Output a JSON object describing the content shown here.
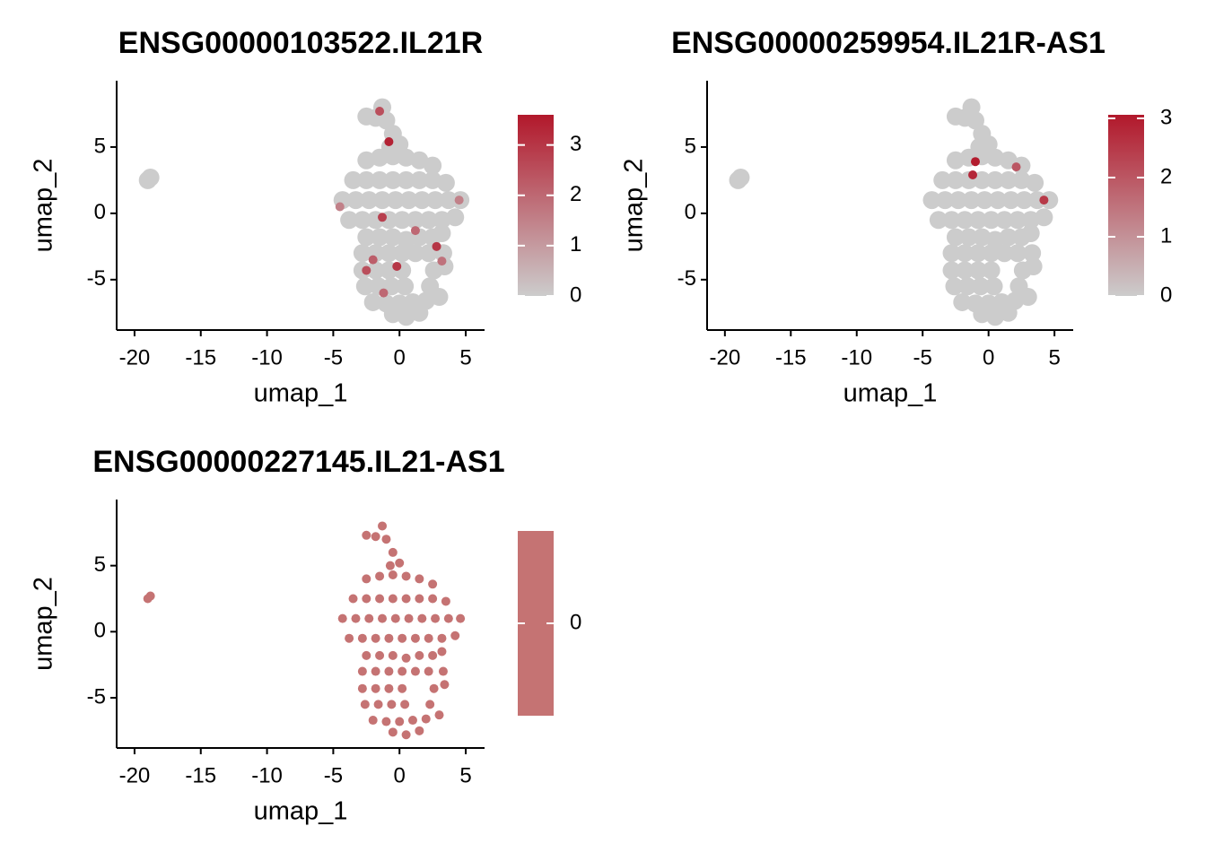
{
  "chart_data": [
    {
      "type": "scatter",
      "title": "ENSG00000103522.IL21R",
      "x_label": "umap_1",
      "y_label": "umap_2",
      "xlim": [
        -21.35,
        6.42
      ],
      "ylim": [
        -8.8,
        10
      ],
      "xticks": [
        -20,
        -15,
        -10,
        -5,
        0,
        5
      ],
      "yticks": [
        -5,
        0,
        5
      ],
      "color_low": "#cccccc",
      "color_high": "#b2182b",
      "clim": [
        0,
        3.6
      ],
      "cticks": [
        0,
        1,
        2,
        3
      ],
      "x": [
        -18.8,
        -19,
        -2.5,
        -1.8,
        -1.3,
        -1,
        -0.5,
        0,
        -0.7,
        -2.5,
        -1.5,
        -0.5,
        0.5,
        1.5,
        2.5,
        -3.5,
        -2.5,
        -1.5,
        -0.5,
        0.5,
        1.5,
        2.5,
        3.5,
        -4.3,
        -3.3,
        -2.3,
        -1.3,
        -0.3,
        0.7,
        1.7,
        2.7,
        3.7,
        4.6,
        -3.8,
        -2.8,
        -1.8,
        -0.8,
        0.2,
        1.2,
        2.2,
        3.2,
        4.2,
        -2.5,
        -1.5,
        -0.5,
        0.5,
        1.5,
        2.5,
        3.2,
        -2.8,
        -1.8,
        -0.8,
        0.2,
        1.2,
        2.2,
        3.3,
        -2.8,
        -1.8,
        -0.8,
        0.2,
        2.6,
        3.4,
        -2.6,
        -1.6,
        -0.6,
        0.4,
        2.3,
        -2,
        -1,
        0,
        1,
        2,
        3,
        -0.5,
        0.5,
        1.5,
        -1.5,
        -0.8,
        -4.5,
        -1.3,
        1.2,
        -2,
        -0.2,
        3.2,
        -2.5,
        2.8,
        -1.2,
        4.5
      ],
      "y": [
        2.7,
        2.5,
        7.3,
        7.2,
        8,
        7,
        6,
        5.2,
        5,
        4,
        4.2,
        4.3,
        4.2,
        4,
        3.6,
        2.5,
        2.5,
        2.5,
        2.5,
        2.5,
        2.5,
        2.5,
        2.3,
        1,
        1,
        1,
        1,
        1,
        1,
        1,
        1,
        1,
        1,
        -0.5,
        -0.5,
        -0.5,
        -0.5,
        -0.5,
        -0.5,
        -0.5,
        -0.5,
        -0.3,
        -1.8,
        -1.8,
        -1.8,
        -2,
        -1.8,
        -1.8,
        -1.5,
        -3,
        -3,
        -3,
        -3,
        -3,
        -3,
        -3,
        -4.3,
        -4.3,
        -4.3,
        -4.3,
        -4.3,
        -4,
        -5.5,
        -5.5,
        -5.5,
        -5.5,
        -5.5,
        -6.7,
        -6.8,
        -6.8,
        -6.7,
        -6.6,
        -6.3,
        -7.6,
        -7.8,
        -7.5,
        7.7,
        5.4,
        0.5,
        -0.3,
        -1.3,
        -3.5,
        -4,
        -3.6,
        -4.3,
        -2.5,
        -6,
        1
      ],
      "values": [
        0,
        0,
        0,
        0,
        0,
        0,
        0,
        0,
        0,
        0,
        0,
        0,
        0,
        0,
        0,
        0,
        0,
        0,
        0,
        0,
        0,
        0,
        0,
        0,
        0,
        0,
        0,
        0,
        0,
        0,
        0,
        0,
        0,
        0,
        0,
        0,
        0,
        0,
        0,
        0,
        0,
        0,
        0,
        0,
        0,
        0,
        0,
        0,
        0,
        0,
        0,
        0,
        0,
        0,
        0,
        0,
        0,
        0,
        0,
        0,
        0,
        0,
        0,
        0,
        0,
        0,
        0,
        0,
        0,
        0,
        0,
        0,
        0,
        0,
        0,
        0,
        2.5,
        3.4,
        1.5,
        2.8,
        2,
        2.2,
        3,
        1.8,
        2.5,
        3,
        2,
        1.5
      ]
    },
    {
      "type": "scatter",
      "title": "ENSG00000259954.IL21R-AS1",
      "x_label": "umap_1",
      "y_label": "umap_2",
      "xlim": [
        -21.35,
        6.42
      ],
      "ylim": [
        -8.8,
        10
      ],
      "xticks": [
        -20,
        -15,
        -10,
        -5,
        0,
        5
      ],
      "yticks": [
        -5,
        0,
        5
      ],
      "color_low": "#cccccc",
      "color_high": "#b2182b",
      "clim": [
        0,
        3.06
      ],
      "cticks": [
        0,
        1,
        2,
        3
      ],
      "x": [
        -18.8,
        -19,
        -2.5,
        -1.8,
        -1.3,
        -1,
        -0.5,
        0,
        -0.7,
        -2.5,
        -1.5,
        -0.5,
        0.5,
        1.5,
        2.5,
        -3.5,
        -2.5,
        -1.5,
        -0.5,
        0.5,
        1.5,
        2.5,
        3.5,
        -4.3,
        -3.3,
        -2.3,
        -1.3,
        -0.3,
        0.7,
        1.7,
        2.7,
        3.7,
        4.6,
        -3.8,
        -2.8,
        -1.8,
        -0.8,
        0.2,
        1.2,
        2.2,
        3.2,
        4.2,
        -2.5,
        -1.5,
        -0.5,
        0.5,
        1.5,
        2.5,
        3.2,
        -2.8,
        -1.8,
        -0.8,
        0.2,
        1.2,
        2.2,
        3.3,
        -2.8,
        -1.8,
        -0.8,
        0.2,
        2.6,
        3.4,
        -2.6,
        -1.6,
        -0.6,
        0.4,
        2.3,
        -2,
        -1,
        0,
        1,
        2,
        3,
        -0.5,
        0.5,
        1.5,
        -1,
        -1.2,
        2.1,
        4.2
      ],
      "y": [
        2.7,
        2.5,
        7.3,
        7.2,
        8,
        7,
        6,
        5.2,
        5,
        4,
        4.2,
        4.3,
        4.2,
        4,
        3.6,
        2.5,
        2.5,
        2.5,
        2.5,
        2.5,
        2.5,
        2.5,
        2.3,
        1,
        1,
        1,
        1,
        1,
        1,
        1,
        1,
        1,
        1,
        -0.5,
        -0.5,
        -0.5,
        -0.5,
        -0.5,
        -0.5,
        -0.5,
        -0.5,
        -0.3,
        -1.8,
        -1.8,
        -1.8,
        -2,
        -1.8,
        -1.8,
        -1.5,
        -3,
        -3,
        -3,
        -3,
        -3,
        -3,
        -3,
        -4.3,
        -4.3,
        -4.3,
        -4.3,
        -4.3,
        -4,
        -5.5,
        -5.5,
        -5.5,
        -5.5,
        -5.5,
        -6.7,
        -6.8,
        -6.8,
        -6.7,
        -6.6,
        -6.3,
        -7.6,
        -7.8,
        -7.5,
        3.9,
        2.9,
        3.5,
        1
      ],
      "values": [
        0,
        0,
        0,
        0,
        0,
        0,
        0,
        0,
        0,
        0,
        0,
        0,
        0,
        0,
        0,
        0,
        0,
        0,
        0,
        0,
        0,
        0,
        0,
        0,
        0,
        0,
        0,
        0,
        0,
        0,
        0,
        0,
        0,
        0,
        0,
        0,
        0,
        0,
        0,
        0,
        0,
        0,
        0,
        0,
        0,
        0,
        0,
        0,
        0,
        0,
        0,
        0,
        0,
        0,
        0,
        0,
        0,
        0,
        0,
        0,
        0,
        0,
        0,
        0,
        0,
        0,
        0,
        0,
        0,
        0,
        0,
        0,
        0,
        0,
        0,
        0,
        3,
        2.8,
        2,
        2.5
      ]
    },
    {
      "type": "scatter",
      "title": "ENSG00000227145.IL21-AS1",
      "x_label": "umap_1",
      "y_label": "umap_2",
      "xlim": [
        -21.35,
        6.42
      ],
      "ylim": [
        -8.8,
        10
      ],
      "xticks": [
        -20,
        -15,
        -10,
        -5,
        0,
        5
      ],
      "yticks": [
        -5,
        0,
        5
      ],
      "color_low": "#c57373",
      "color_high": "#c57373",
      "clim": [
        -1,
        1
      ],
      "cticks": [
        0
      ],
      "x": [
        -18.8,
        -19,
        -2.5,
        -1.8,
        -1.3,
        -1,
        -0.5,
        0,
        -0.7,
        -2.5,
        -1.5,
        -0.5,
        0.5,
        1.5,
        2.5,
        -3.5,
        -2.5,
        -1.5,
        -0.5,
        0.5,
        1.5,
        2.5,
        3.5,
        -4.3,
        -3.3,
        -2.3,
        -1.3,
        -0.3,
        0.7,
        1.7,
        2.7,
        3.7,
        4.6,
        -3.8,
        -2.8,
        -1.8,
        -0.8,
        0.2,
        1.2,
        2.2,
        3.2,
        4.2,
        -2.5,
        -1.5,
        -0.5,
        0.5,
        1.5,
        2.5,
        3.2,
        -2.8,
        -1.8,
        -0.8,
        0.2,
        1.2,
        2.2,
        3.3,
        -2.8,
        -1.8,
        -0.8,
        0.2,
        2.6,
        3.4,
        -2.6,
        -1.6,
        -0.6,
        0.4,
        2.3,
        -2,
        -1,
        0,
        1,
        2,
        3,
        -0.5,
        0.5,
        1.5
      ],
      "y": [
        2.7,
        2.5,
        7.3,
        7.2,
        8,
        7,
        6,
        5.2,
        5,
        4,
        4.2,
        4.3,
        4.2,
        4,
        3.6,
        2.5,
        2.5,
        2.5,
        2.5,
        2.5,
        2.5,
        2.5,
        2.3,
        1,
        1,
        1,
        1,
        1,
        1,
        1,
        1,
        1,
        1,
        -0.5,
        -0.5,
        -0.5,
        -0.5,
        -0.5,
        -0.5,
        -0.5,
        -0.5,
        -0.3,
        -1.8,
        -1.8,
        -1.8,
        -2,
        -1.8,
        -1.8,
        -1.5,
        -3,
        -3,
        -3,
        -3,
        -3,
        -3,
        -3,
        -4.3,
        -4.3,
        -4.3,
        -4.3,
        -4.3,
        -4,
        -5.5,
        -5.5,
        -5.5,
        -5.5,
        -5.5,
        -6.7,
        -6.8,
        -6.8,
        -6.7,
        -6.6,
        -6.3,
        -7.6,
        -7.8,
        -7.5
      ],
      "values": [
        0,
        0,
        0,
        0,
        0,
        0,
        0,
        0,
        0,
        0,
        0,
        0,
        0,
        0,
        0,
        0,
        0,
        0,
        0,
        0,
        0,
        0,
        0,
        0,
        0,
        0,
        0,
        0,
        0,
        0,
        0,
        0,
        0,
        0,
        0,
        0,
        0,
        0,
        0,
        0,
        0,
        0,
        0,
        0,
        0,
        0,
        0,
        0,
        0,
        0,
        0,
        0,
        0,
        0,
        0,
        0,
        0,
        0,
        0,
        0,
        0,
        0,
        0,
        0,
        0,
        0,
        0,
        0,
        0,
        0,
        0,
        0,
        0,
        0,
        0,
        0
      ]
    }
  ]
}
